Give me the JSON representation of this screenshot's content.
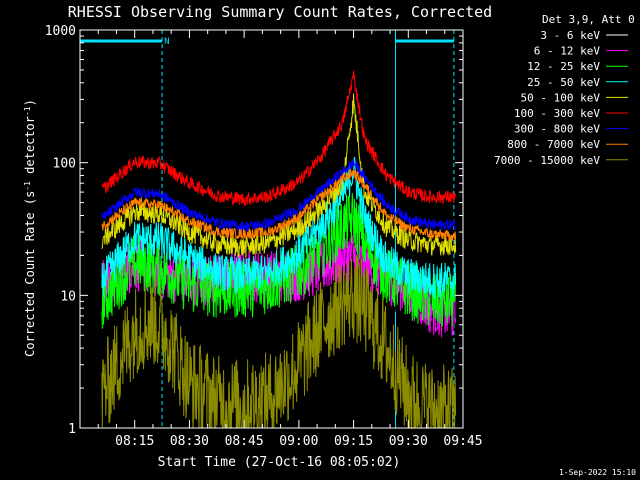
{
  "chart_data": {
    "type": "line",
    "title": "RHESSI Observing Summary Count Rates, Corrected",
    "xlabel": "Start Time (27-Oct-16 08:05:02)",
    "ylabel_main": "Corrected Count Rate (s",
    "ylabel_sup1": "-1",
    "ylabel_mid": " detector",
    "ylabel_sup2": "-1",
    "ylabel_end": ")",
    "y_scale": "log",
    "ylim": [
      1,
      1000
    ],
    "x_range_minutes": [
      "08:05",
      "09:45"
    ],
    "x_ticks": [
      {
        "label": "08:15",
        "min": 15
      },
      {
        "label": "08:30",
        "min": 30
      },
      {
        "label": "08:45",
        "min": 45
      },
      {
        "label": "09:00",
        "min": 60
      },
      {
        "label": "09:15",
        "min": 75
      },
      {
        "label": "09:30",
        "min": 90
      },
      {
        "label": "09:45",
        "min": 105
      }
    ],
    "y_ticks": [
      {
        "label": "1",
        "value": 1
      },
      {
        "label": "10",
        "value": 10
      },
      {
        "label": "100",
        "value": 100
      },
      {
        "label": "1000",
        "value": 1000
      }
    ],
    "legend_title": "Det 3,9, Att 0",
    "legend_placement": "right",
    "footer_date": "1-Sep-2022 15:10",
    "night_marker_label": "N",
    "night_intervals_minutes": [
      [
        0,
        22.5
      ],
      [
        86.5,
        102.5
      ]
    ],
    "series": [
      {
        "name": "3 - 6 keV",
        "color": "#000000",
        "values": [
          [
            6,
            13
          ],
          [
            15,
            16
          ],
          [
            22,
            15
          ],
          [
            30,
            12
          ],
          [
            38,
            14
          ],
          [
            45,
            19
          ],
          [
            52,
            14
          ],
          [
            60,
            13
          ],
          [
            66,
            15
          ],
          [
            72,
            18
          ],
          [
            78,
            17
          ],
          [
            84,
            14
          ],
          [
            90,
            9
          ],
          [
            96,
            9
          ],
          [
            103,
            9
          ]
        ]
      },
      {
        "name": "6 - 12 keV",
        "color": "#ff00ff",
        "values": [
          [
            6,
            12
          ],
          [
            15,
            17
          ],
          [
            22,
            15
          ],
          [
            30,
            13
          ],
          [
            38,
            13
          ],
          [
            45,
            14
          ],
          [
            52,
            14
          ],
          [
            60,
            14
          ],
          [
            66,
            16
          ],
          [
            72,
            19
          ],
          [
            75,
            20
          ],
          [
            78,
            17
          ],
          [
            84,
            14
          ],
          [
            90,
            11
          ],
          [
            96,
            8
          ],
          [
            103,
            7
          ]
        ]
      },
      {
        "name": "12 - 25 keV",
        "color": "#00ff00",
        "values": [
          [
            6,
            9
          ],
          [
            15,
            18
          ],
          [
            22,
            16
          ],
          [
            30,
            12
          ],
          [
            38,
            11
          ],
          [
            45,
            11
          ],
          [
            52,
            12
          ],
          [
            60,
            15
          ],
          [
            66,
            22
          ],
          [
            72,
            33
          ],
          [
            75,
            38
          ],
          [
            78,
            25
          ],
          [
            84,
            14
          ],
          [
            90,
            11
          ],
          [
            96,
            9
          ],
          [
            103,
            9
          ]
        ]
      },
      {
        "name": "25 - 50 keV",
        "color": "#00ffff",
        "values": [
          [
            6,
            13
          ],
          [
            15,
            27
          ],
          [
            22,
            26
          ],
          [
            30,
            19
          ],
          [
            38,
            15
          ],
          [
            45,
            14
          ],
          [
            52,
            15
          ],
          [
            60,
            21
          ],
          [
            66,
            33
          ],
          [
            72,
            55
          ],
          [
            75,
            90
          ],
          [
            78,
            38
          ],
          [
            84,
            18
          ],
          [
            90,
            14
          ],
          [
            96,
            13
          ],
          [
            103,
            13
          ]
        ]
      },
      {
        "name": "50 - 100 keV",
        "color": "#e0e000",
        "values": [
          [
            6,
            26
          ],
          [
            15,
            43
          ],
          [
            22,
            41
          ],
          [
            30,
            30
          ],
          [
            38,
            24
          ],
          [
            45,
            23
          ],
          [
            52,
            25
          ],
          [
            60,
            32
          ],
          [
            66,
            45
          ],
          [
            72,
            70
          ],
          [
            75,
            290
          ],
          [
            78,
            60
          ],
          [
            84,
            33
          ],
          [
            90,
            26
          ],
          [
            96,
            24
          ],
          [
            103,
            24
          ]
        ]
      },
      {
        "name": "100 - 300 keV",
        "color": "#ff0000",
        "values": [
          [
            6,
            62
          ],
          [
            15,
            102
          ],
          [
            22,
            98
          ],
          [
            30,
            70
          ],
          [
            38,
            56
          ],
          [
            45,
            53
          ],
          [
            52,
            56
          ],
          [
            60,
            72
          ],
          [
            66,
            110
          ],
          [
            72,
            200
          ],
          [
            75,
            460
          ],
          [
            78,
            150
          ],
          [
            84,
            80
          ],
          [
            90,
            60
          ],
          [
            96,
            55
          ],
          [
            103,
            55
          ]
        ]
      },
      {
        "name": "300 - 800 keV",
        "color": "#0000ff",
        "values": [
          [
            6,
            38
          ],
          [
            15,
            60
          ],
          [
            22,
            58
          ],
          [
            30,
            42
          ],
          [
            38,
            35
          ],
          [
            45,
            33
          ],
          [
            52,
            35
          ],
          [
            60,
            45
          ],
          [
            66,
            62
          ],
          [
            72,
            85
          ],
          [
            75,
            100
          ],
          [
            78,
            78
          ],
          [
            84,
            48
          ],
          [
            90,
            38
          ],
          [
            96,
            34
          ],
          [
            103,
            34
          ]
        ]
      },
      {
        "name": "800 - 7000 keV",
        "color": "#ff8000",
        "values": [
          [
            6,
            33
          ],
          [
            15,
            50
          ],
          [
            22,
            48
          ],
          [
            30,
            36
          ],
          [
            38,
            30
          ],
          [
            45,
            29
          ],
          [
            52,
            30
          ],
          [
            60,
            39
          ],
          [
            66,
            55
          ],
          [
            72,
            75
          ],
          [
            75,
            85
          ],
          [
            78,
            68
          ],
          [
            84,
            40
          ],
          [
            90,
            32
          ],
          [
            96,
            29
          ],
          [
            103,
            28
          ]
        ]
      },
      {
        "name": "7000 - 15000 keV",
        "color": "#8c8c00",
        "values": [
          [
            6,
            1.8
          ],
          [
            15,
            5.5
          ],
          [
            20,
            6.5
          ],
          [
            24,
            5
          ],
          [
            30,
            2.2
          ],
          [
            38,
            1.6
          ],
          [
            45,
            1.5
          ],
          [
            52,
            1.7
          ],
          [
            60,
            3
          ],
          [
            66,
            6
          ],
          [
            72,
            9
          ],
          [
            75,
            10
          ],
          [
            78,
            8
          ],
          [
            84,
            4
          ],
          [
            90,
            1.8
          ],
          [
            96,
            1.4
          ],
          [
            103,
            1.3
          ]
        ]
      }
    ]
  }
}
